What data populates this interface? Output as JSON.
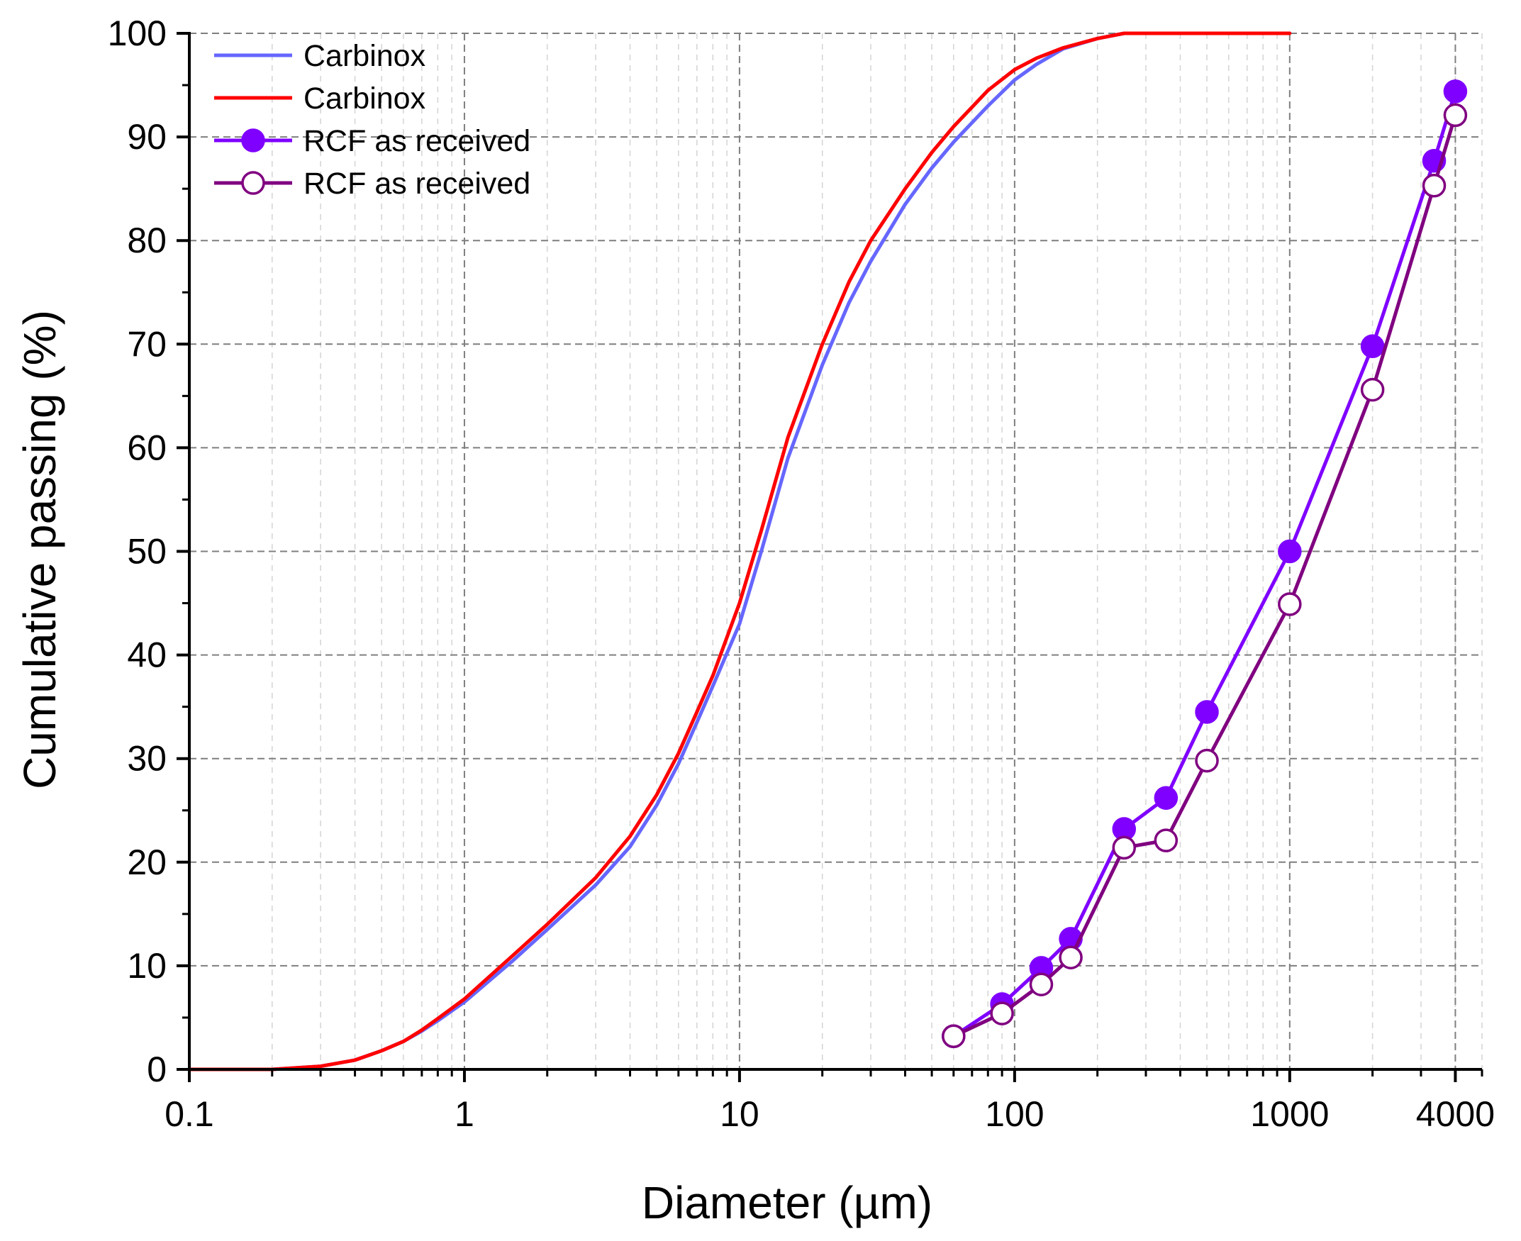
{
  "chart_data": {
    "type": "line",
    "title": "",
    "xlabel": "Diameter (µm)",
    "ylabel": "Cumulative passing (%)",
    "xscale": "log",
    "xlim": [
      0.1,
      5000
    ],
    "ylim": [
      0,
      100
    ],
    "grid": true,
    "legend_position": "top-left",
    "x_ticks": [
      0.1,
      1,
      10,
      100,
      1000,
      4000
    ],
    "x_tick_labels": [
      "0.1",
      "1",
      "10",
      "100",
      "1000",
      "4000"
    ],
    "y_ticks": [
      0,
      10,
      20,
      30,
      40,
      50,
      60,
      70,
      80,
      90,
      100
    ],
    "y_tick_labels": [
      "0",
      "10",
      "20",
      "30",
      "40",
      "50",
      "60",
      "70",
      "80",
      "90",
      "100"
    ],
    "series": [
      {
        "name": "Carbinox",
        "color": "#6666ff",
        "marker": "none",
        "x": [
          0.1,
          0.2,
          0.3,
          0.4,
          0.5,
          0.6,
          0.7,
          0.8,
          1,
          1.5,
          2,
          3,
          4,
          5,
          6,
          7,
          8,
          10,
          12,
          15,
          20,
          25,
          30,
          40,
          50,
          60,
          80,
          100,
          120,
          150,
          200,
          250,
          300,
          500,
          1000
        ],
        "y": [
          0,
          0,
          0.3,
          0.9,
          1.8,
          2.7,
          3.7,
          4.7,
          6.5,
          10.5,
          13.5,
          17.8,
          21.5,
          25.5,
          29.5,
          33.5,
          37,
          43,
          50,
          59,
          68,
          74,
          78,
          83.5,
          87,
          89.5,
          93,
          95.5,
          97,
          98.5,
          99.5,
          100,
          100,
          100,
          100
        ]
      },
      {
        "name": "Carbinox",
        "color": "#ff0000",
        "marker": "none",
        "x": [
          0.1,
          0.2,
          0.3,
          0.4,
          0.5,
          0.6,
          0.7,
          0.8,
          1,
          1.5,
          2,
          3,
          4,
          5,
          6,
          7,
          8,
          10,
          12,
          15,
          20,
          25,
          30,
          40,
          50,
          60,
          80,
          100,
          120,
          150,
          200,
          250,
          300,
          500,
          1000
        ],
        "y": [
          0,
          0,
          0.3,
          0.9,
          1.8,
          2.7,
          3.8,
          4.9,
          6.8,
          11,
          14,
          18.5,
          22.5,
          26.5,
          30.5,
          34.5,
          38,
          45,
          52,
          61,
          70,
          76,
          80,
          85,
          88.5,
          91,
          94.5,
          96.5,
          97.6,
          98.6,
          99.5,
          100,
          100,
          100,
          100
        ]
      },
      {
        "name": "RCF as received",
        "color": "#7f00ff",
        "marker": "filled-circle",
        "x": [
          60,
          90,
          125,
          160,
          250,
          355,
          500,
          1000,
          2000,
          3350,
          4000
        ],
        "y": [
          3.2,
          6.3,
          9.8,
          12.6,
          23.2,
          26.2,
          34.5,
          50,
          69.8,
          87.7,
          94.4
        ]
      },
      {
        "name": "RCF as received",
        "color": "#800080",
        "marker": "open-circle",
        "x": [
          60,
          90,
          125,
          160,
          250,
          355,
          500,
          1000,
          2000,
          3350,
          4000
        ],
        "y": [
          3.2,
          5.4,
          8.2,
          10.8,
          21.4,
          22.1,
          29.8,
          44.9,
          65.6,
          85.3,
          92.1
        ]
      }
    ]
  }
}
